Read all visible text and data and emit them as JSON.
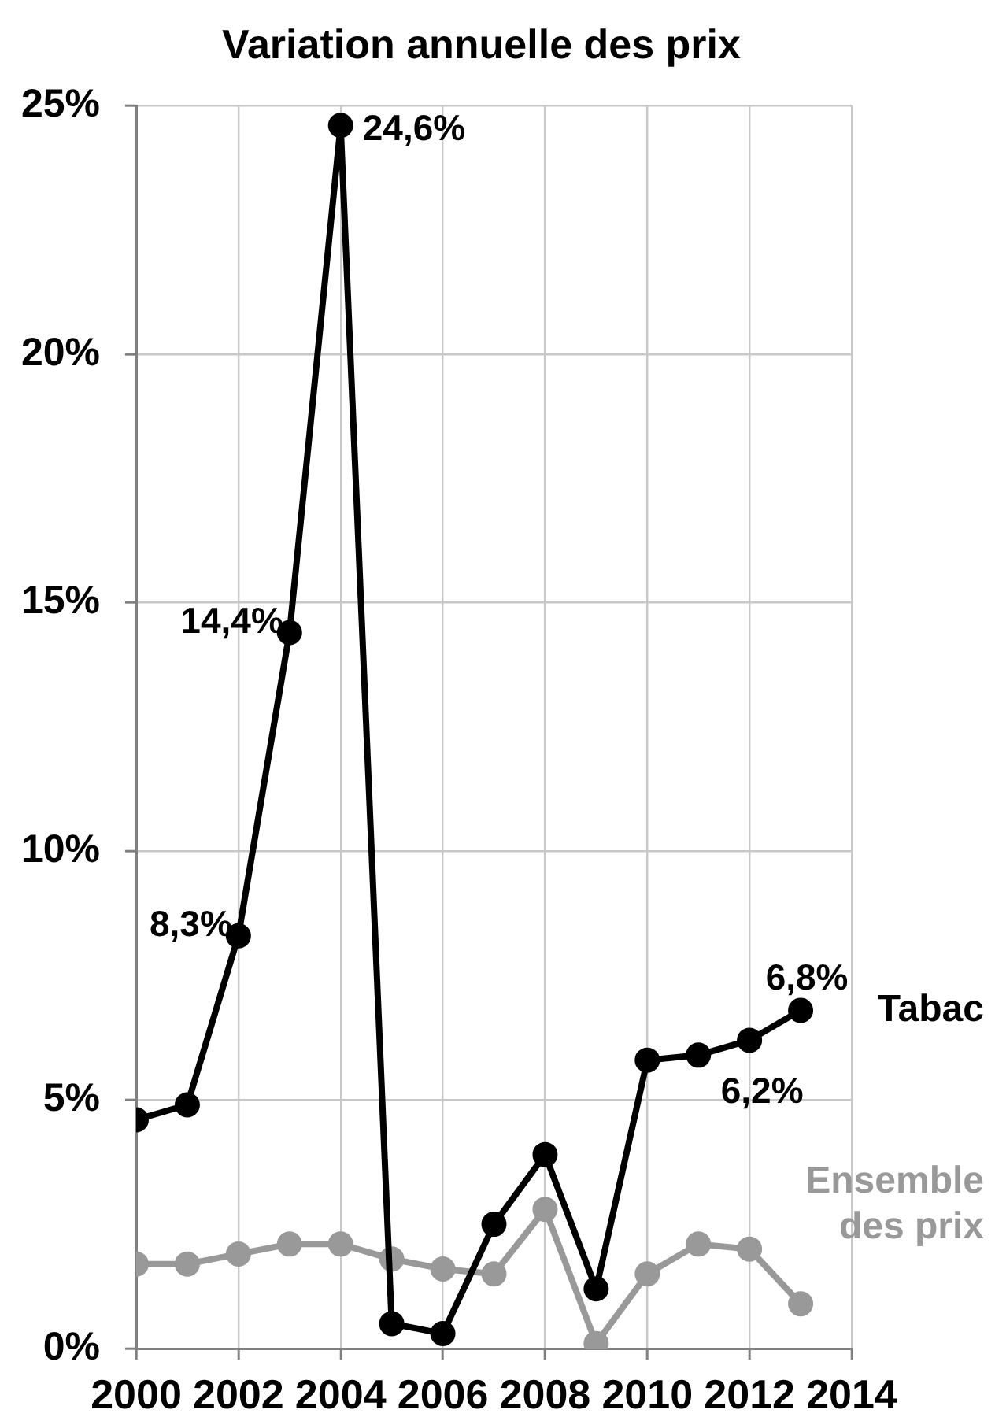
{
  "chart_data": {
    "type": "line",
    "title": "Variation annuelle des prix",
    "x": [
      2000,
      2001,
      2002,
      2003,
      2004,
      2005,
      2006,
      2007,
      2008,
      2009,
      2010,
      2011,
      2012,
      2013
    ],
    "series": [
      {
        "name": "Tabac",
        "color": "#000000",
        "values": [
          4.6,
          4.9,
          8.3,
          14.4,
          24.6,
          0.5,
          0.3,
          2.5,
          3.9,
          1.2,
          5.8,
          5.9,
          6.2,
          6.8
        ],
        "value_labels": [
          null,
          null,
          "8,3%",
          "14,4%",
          "24,6%",
          null,
          null,
          null,
          null,
          null,
          null,
          null,
          "6,2%",
          "6,8%"
        ]
      },
      {
        "name": "Ensemble des prix",
        "color": "#999999",
        "values": [
          1.7,
          1.7,
          1.9,
          2.1,
          2.1,
          1.8,
          1.6,
          1.5,
          2.8,
          0.1,
          1.5,
          2.1,
          2.0,
          0.9
        ]
      }
    ],
    "xlim": [
      2000,
      2014
    ],
    "xticks": [
      2000,
      2002,
      2004,
      2006,
      2008,
      2010,
      2012,
      2014
    ],
    "ylim": [
      0,
      25
    ],
    "yticks": [
      {
        "value": 0,
        "label": "0%"
      },
      {
        "value": 5,
        "label": "5%"
      },
      {
        "value": 10,
        "label": "10%"
      },
      {
        "value": 15,
        "label": "15%"
      },
      {
        "value": 20,
        "label": "20%"
      },
      {
        "value": 25,
        "label": "25%"
      }
    ],
    "grid": true,
    "marker": "circle"
  }
}
